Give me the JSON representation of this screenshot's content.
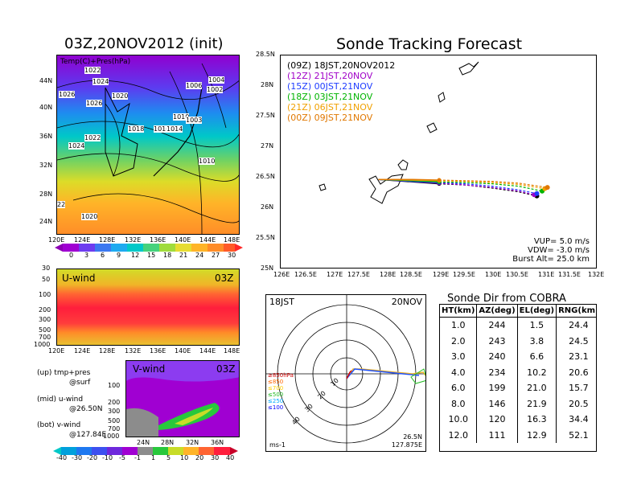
{
  "left_top": {
    "title": "03Z,20NOV2012 (init)",
    "overlay": "Temp(C)+Pres(hPa)",
    "lat_ticks": [
      "44N",
      "40N",
      "36N",
      "32N",
      "28N",
      "24N"
    ],
    "lon_ticks": [
      "120E",
      "124E",
      "128E",
      "132E",
      "136E",
      "140E",
      "144E",
      "148E"
    ],
    "pressure_labels": [
      "1022",
      "1024",
      "1026",
      "1026",
      "1020",
      "1018",
      "1016",
      "1014",
      "1010",
      "1003",
      "1022",
      "1024",
      "1006",
      "1004",
      "1002",
      "1010",
      "22",
      "1020"
    ],
    "colorbar_ticks": [
      "0",
      "3",
      "6",
      "9",
      "12",
      "15",
      "18",
      "21",
      "24",
      "27",
      "30"
    ]
  },
  "u_wind": {
    "title": "U-wind",
    "time": "03Z",
    "y_ticks": [
      "30",
      "50",
      "100",
      "200",
      "300",
      "500",
      "700",
      "1000"
    ],
    "x_ticks": [
      "120E",
      "124E",
      "128E",
      "132E",
      "136E",
      "140E",
      "144E",
      "148E"
    ]
  },
  "v_wind": {
    "title": "V-wind",
    "time": "03Z",
    "y_ticks": [
      "100",
      "200",
      "300",
      "500",
      "700",
      "1000"
    ],
    "x_ticks": [
      "24N",
      "28N",
      "32N",
      "36N"
    ]
  },
  "legend_notes": {
    "up": "(up) tmp+pres",
    "up2": "@surf",
    "mid": "(mid) u-wind",
    "mid2": "@26.50N",
    "bot": "(bot) v-wind",
    "bot2": "@127.84E"
  },
  "wind_colorbar_ticks": [
    "-40",
    "-30",
    "-20",
    "-10",
    "-5",
    "-1",
    "1",
    "5",
    "10",
    "20",
    "30",
    "40"
  ],
  "tracking": {
    "title": "Sonde Tracking Forecast",
    "y_ticks": [
      "28.5N",
      "28N",
      "27.5N",
      "27N",
      "26.5N",
      "26N",
      "25.5N",
      "25N"
    ],
    "x_ticks": [
      "126E",
      "126.5E",
      "127E",
      "127.5E",
      "128E",
      "128.5E",
      "129E",
      "129.5E",
      "130E",
      "130.5E",
      "131E",
      "131.5E",
      "132E"
    ],
    "launches": [
      {
        "code": "(09Z)",
        "label": "18JST,20NOV2012",
        "color": "#000000"
      },
      {
        "code": "(12Z)",
        "label": "21JST,20NOV",
        "color": "#a000c8"
      },
      {
        "code": "(15Z)",
        "label": "00JST,21NOV",
        "color": "#1e3cff"
      },
      {
        "code": "(18Z)",
        "label": "03JST,21NOV",
        "color": "#00b400"
      },
      {
        "code": "(21Z)",
        "label": "06JST,21NOV",
        "color": "#f0a000"
      },
      {
        "code": "(00Z)",
        "label": "09JST,21NOV",
        "color": "#e07800"
      }
    ],
    "params": [
      "VUP= 5.0 m/s",
      "VDW= -3.0 m/s",
      "Burst Alt= 25.0 km"
    ]
  },
  "chart_data": {
    "type": "line",
    "title": "Sonde Tracking Forecast",
    "xlabel": "",
    "ylabel": "",
    "xlim": [
      126,
      132
    ],
    "ylim": [
      25,
      28.5
    ],
    "series": [
      {
        "name": "(09Z) 18JST,20NOV2012",
        "x": [
          127.85,
          128.5,
          129.0,
          129.5,
          130.0,
          130.5,
          130.85
        ],
        "y": [
          26.47,
          26.43,
          26.4,
          26.38,
          26.33,
          26.27,
          26.2
        ]
      },
      {
        "name": "(12Z) 21JST,20NOV",
        "x": [
          127.85,
          128.5,
          129.0,
          129.5,
          130.0,
          130.5,
          130.8
        ],
        "y": [
          26.47,
          26.44,
          26.41,
          26.38,
          26.34,
          26.28,
          26.22
        ]
      },
      {
        "name": "(15Z) 00JST,21NOV",
        "x": [
          127.85,
          128.5,
          129.0,
          129.5,
          130.0,
          130.5,
          130.85
        ],
        "y": [
          26.47,
          26.44,
          26.42,
          26.4,
          26.36,
          26.3,
          26.24
        ]
      },
      {
        "name": "(18Z) 03JST,21NOV",
        "x": [
          127.85,
          128.5,
          129.0,
          129.5,
          130.0,
          130.5,
          130.95
        ],
        "y": [
          26.47,
          26.45,
          26.43,
          26.42,
          26.4,
          26.36,
          26.28
        ]
      },
      {
        "name": "(21Z) 06JST,21NOV",
        "x": [
          127.85,
          128.5,
          129.0,
          129.5,
          130.0,
          130.5,
          131.0
        ],
        "y": [
          26.47,
          26.46,
          26.45,
          26.44,
          26.42,
          26.39,
          26.32
        ]
      },
      {
        "name": "(00Z) 09JST,21NOV",
        "x": [
          127.85,
          128.5,
          129.0,
          129.5,
          130.0,
          130.5,
          131.05
        ],
        "y": [
          26.47,
          26.47,
          26.46,
          26.45,
          26.44,
          26.41,
          26.34
        ]
      }
    ]
  },
  "polar": {
    "time": "18JST",
    "date": "20NOV",
    "levels": [
      "≥850hPa",
      "≤850",
      "≤700",
      "≤500",
      "≤250",
      "≤100"
    ],
    "level_colors": [
      "#d00000",
      "#ff6600",
      "#ffcc00",
      "#22bb22",
      "#00aaff",
      "#0000ff"
    ],
    "rings": [
      "10",
      "20",
      "30",
      "40"
    ],
    "unit": "ms-1",
    "lat": "26.5N",
    "lon": "127.875E"
  },
  "table": {
    "title": "Sonde Dir from COBRA",
    "headers": [
      "HT(km)",
      "AZ(deg)",
      "EL(deg)",
      "RNG(km)"
    ],
    "rows": [
      [
        "1.0",
        "244",
        "1.5",
        "24.4"
      ],
      [
        "2.0",
        "243",
        "3.8",
        "24.5"
      ],
      [
        "3.0",
        "240",
        "6.6",
        "23.1"
      ],
      [
        "4.0",
        "234",
        "10.2",
        "20.6"
      ],
      [
        "6.0",
        "199",
        "21.0",
        "15.7"
      ],
      [
        "8.0",
        "146",
        "21.9",
        "20.5"
      ],
      [
        "10.0",
        "120",
        "16.3",
        "34.4"
      ],
      [
        "12.0",
        "111",
        "12.9",
        "52.1"
      ]
    ]
  }
}
